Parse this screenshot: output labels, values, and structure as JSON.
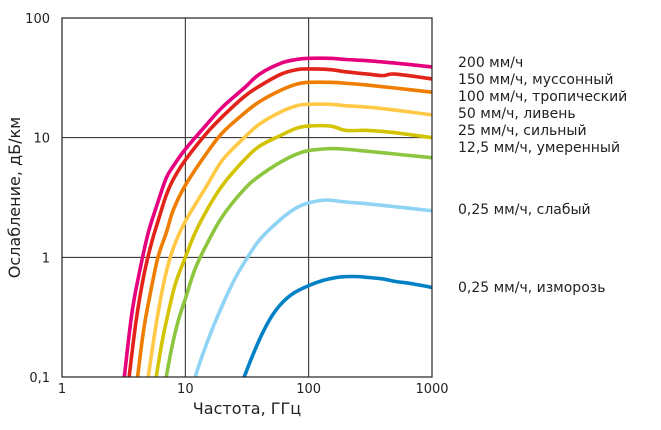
{
  "chart_data": {
    "type": "line",
    "x_scale": "log",
    "y_scale": "log",
    "xlim": [
      1,
      1000
    ],
    "ylim": [
      0.1,
      100
    ],
    "xlabel": "Частота, ГГц",
    "ylabel": "Ослабление, дБ/км",
    "x_ticks": [
      "1",
      "10",
      "100",
      "1000"
    ],
    "y_ticks": [
      "0,1",
      "1",
      "10",
      "100"
    ],
    "x_tick_values": [
      1,
      10,
      100,
      1000
    ],
    "y_tick_values": [
      0.1,
      1,
      10,
      100
    ],
    "grid": true,
    "legend_placement": "right",
    "series": [
      {
        "name": "200 мм/ч",
        "color": "#e6007e",
        "x": [
          3.2,
          3.7,
          4.3,
          5,
          6,
          7,
          8,
          10,
          15,
          20,
          30,
          40,
          60,
          80,
          100,
          150,
          200,
          300,
          500,
          1000
        ],
        "y": [
          0.1,
          0.35,
          0.8,
          1.6,
          2.9,
          4.6,
          5.8,
          8,
          13,
          18,
          26,
          34,
          42,
          45,
          46,
          46,
          45,
          44,
          42,
          39
        ]
      },
      {
        "name": "150 мм/ч, муссонный",
        "color": "#e2231a",
        "x": [
          3.5,
          4,
          4.6,
          5.3,
          6,
          7,
          8,
          10,
          15,
          20,
          30,
          40,
          60,
          80,
          100,
          150,
          200,
          300,
          400,
          500,
          1000
        ],
        "y": [
          0.1,
          0.3,
          0.7,
          1.3,
          2.0,
          3.3,
          4.5,
          6.5,
          11,
          15,
          22,
          27,
          34,
          37,
          37.5,
          37,
          35.5,
          34,
          33,
          34,
          31
        ]
      },
      {
        "name": "100 мм/ч, тропический",
        "color": "#ef7d00",
        "x": [
          4.1,
          4.6,
          5.2,
          6,
          7,
          8,
          10,
          15,
          20,
          30,
          40,
          60,
          80,
          100,
          150,
          200,
          300,
          500,
          1000
        ],
        "y": [
          0.1,
          0.25,
          0.5,
          1.0,
          1.6,
          2.5,
          4,
          7.5,
          11,
          16,
          20,
          25,
          28,
          29,
          29,
          28.5,
          27.5,
          26,
          24
        ]
      },
      {
        "name": "50 мм/ч, ливень",
        "color": "#ffc845",
        "x": [
          5,
          5.6,
          6.3,
          7,
          8,
          10,
          15,
          20,
          30,
          40,
          60,
          80,
          100,
          150,
          200,
          300,
          500,
          1000
        ],
        "y": [
          0.1,
          0.22,
          0.45,
          0.75,
          1.2,
          2,
          4,
          6.5,
          10,
          13,
          16.5,
          18.5,
          19,
          19,
          18.5,
          18,
          17,
          15.5
        ]
      },
      {
        "name": "25 мм/ч, сильный",
        "color": "#d3c300",
        "x": [
          5.8,
          6.5,
          7.3,
          8.3,
          10,
          12,
          15,
          20,
          30,
          40,
          60,
          80,
          100,
          150,
          200,
          300,
          500,
          1000
        ],
        "y": [
          0.1,
          0.2,
          0.35,
          0.6,
          1.0,
          1.6,
          2.5,
          4,
          6.5,
          8.5,
          10.5,
          12,
          12.5,
          12.5,
          11.5,
          11.5,
          11,
          10
        ]
      },
      {
        "name": "12,5 мм/ч, умеренный",
        "color": "#8cc63e",
        "x": [
          7,
          7.8,
          8.8,
          10,
          12,
          15,
          20,
          30,
          40,
          60,
          80,
          100,
          150,
          200,
          300,
          500,
          1000
        ],
        "y": [
          0.1,
          0.18,
          0.3,
          0.45,
          0.8,
          1.3,
          2.2,
          3.7,
          4.8,
          6.3,
          7.3,
          7.8,
          8.1,
          8,
          7.7,
          7.3,
          6.8
        ]
      },
      {
        "name": "0,25 мм/ч, слабый",
        "color": "#8fd3f5",
        "x": [
          12,
          14,
          17,
          20,
          25,
          30,
          40,
          60,
          80,
          100,
          130,
          150,
          200,
          300,
          500,
          1000
        ],
        "y": [
          0.1,
          0.16,
          0.27,
          0.4,
          0.65,
          0.9,
          1.4,
          2.1,
          2.6,
          2.85,
          3.0,
          3.0,
          2.9,
          2.8,
          2.65,
          2.45
        ]
      },
      {
        "name": "0,25 мм/ч, изморозь",
        "color": "#0081c6",
        "x": [
          30,
          35,
          42,
          50,
          60,
          75,
          100,
          130,
          170,
          200,
          250,
          300,
          400,
          500,
          700,
          1000
        ],
        "y": [
          0.1,
          0.15,
          0.23,
          0.32,
          0.41,
          0.5,
          0.58,
          0.64,
          0.68,
          0.69,
          0.69,
          0.68,
          0.66,
          0.63,
          0.6,
          0.56
        ]
      }
    ]
  }
}
